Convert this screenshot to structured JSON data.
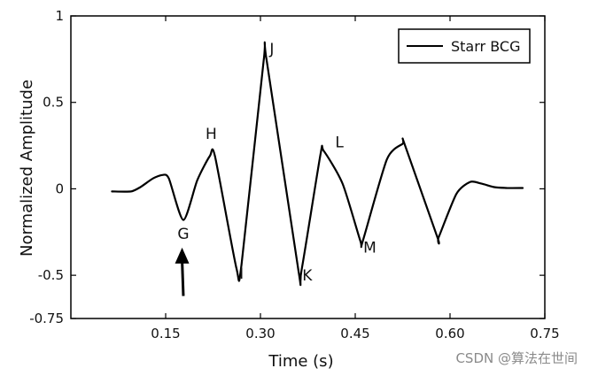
{
  "chart_data": {
    "type": "line",
    "title": "",
    "xlabel": "Time (s)",
    "ylabel": "Normalized Amplitude",
    "xlim": [
      0.0,
      0.75
    ],
    "ylim": [
      -0.75,
      1
    ],
    "xticks": [
      "0.15",
      "0.30",
      "0.45",
      "0.60",
      "0.75"
    ],
    "xtick_values": [
      0.15,
      0.3,
      0.45,
      0.6,
      0.75
    ],
    "yticks": [
      "-0.75",
      "-0.5",
      "0",
      "0.5",
      "1"
    ],
    "ytick_values": [
      -0.75,
      -0.5,
      0,
      0.5,
      1
    ],
    "grid": false,
    "legend_position": "top-right",
    "series": [
      {
        "name": "Starr BCG",
        "color": "#000000",
        "x": [
          0.065,
          0.095,
          0.11,
          0.13,
          0.145,
          0.155,
          0.178,
          0.2,
          0.22,
          0.228,
          0.262,
          0.27,
          0.305,
          0.31,
          0.36,
          0.365,
          0.395,
          0.4,
          0.43,
          0.458,
          0.462,
          0.5,
          0.525,
          0.528,
          0.58,
          0.582,
          0.61,
          0.632,
          0.65,
          0.67,
          0.69,
          0.715
        ],
        "values": [
          -0.015,
          -0.015,
          0.01,
          0.06,
          0.08,
          0.06,
          -0.18,
          0.05,
          0.19,
          0.19,
          -0.46,
          -0.44,
          0.74,
          0.74,
          -0.47,
          -0.47,
          0.2,
          0.22,
          0.03,
          -0.3,
          -0.3,
          0.17,
          0.26,
          0.26,
          -0.28,
          -0.28,
          -0.03,
          0.04,
          0.03,
          0.01,
          0.005,
          0.005
        ]
      }
    ],
    "annotations": [
      {
        "label": "G",
        "x": 0.178,
        "y": -0.29
      },
      {
        "label": "H",
        "x": 0.222,
        "y": 0.29
      },
      {
        "label": "I",
        "x": 0.27,
        "y": -0.52
      },
      {
        "label": "J",
        "x": 0.318,
        "y": 0.78
      },
      {
        "label": "K",
        "x": 0.374,
        "y": -0.53
      },
      {
        "label": "L",
        "x": 0.425,
        "y": 0.24
      },
      {
        "label": "M",
        "x": 0.473,
        "y": -0.37
      }
    ],
    "arrow": {
      "x_tail": 0.178,
      "y_tail": -0.62,
      "x_head": 0.176,
      "y_head": -0.34
    }
  },
  "watermark": "CSDN @算法在世间"
}
